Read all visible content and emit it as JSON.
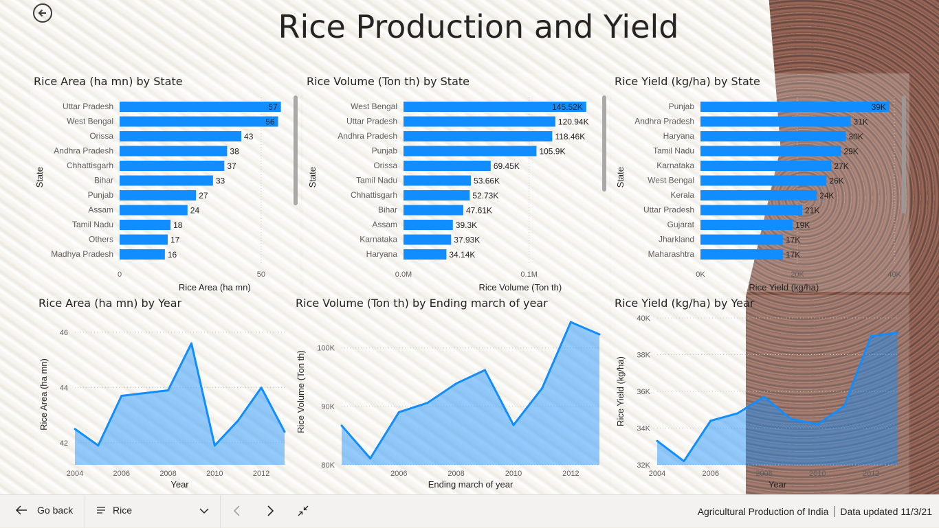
{
  "page": {
    "title": "Rice Production and Yield",
    "icons": {
      "back": "back-arrow-circle-icon"
    }
  },
  "colors": {
    "accent": "#118DFF",
    "area_fill": "rgba(17,141,255,0.45)"
  },
  "footer": {
    "go_back_label": "Go back",
    "page_selector": "Rice",
    "report_name": "Agricultural Production of India",
    "updated": "Data updated 11/3/21"
  },
  "chart_data": [
    {
      "id": "area_state",
      "type": "bar",
      "orientation": "horizontal",
      "title": "Rice Area (ha mn) by State",
      "xlabel": "Rice Area (ha mn)",
      "ylabel": "State",
      "categories": [
        "Uttar Pradesh",
        "West Bengal",
        "Orissa",
        "Andhra Pradesh",
        "Chhattisgarh",
        "Bihar",
        "Punjab",
        "Assam",
        "Tamil Nadu",
        "Others",
        "Madhya Pradesh"
      ],
      "values": [
        57,
        56,
        43,
        38,
        37,
        33,
        27,
        24,
        18,
        17,
        16
      ],
      "data_labels": [
        "57",
        "56",
        "43",
        "38",
        "37",
        "33",
        "27",
        "24",
        "18",
        "17",
        "16"
      ],
      "xlim": [
        0,
        60
      ],
      "xticks": [
        0,
        50
      ],
      "xtick_labels": [
        "0",
        "50"
      ]
    },
    {
      "id": "vol_state",
      "type": "bar",
      "orientation": "horizontal",
      "title": "Rice Volume (Ton th) by State",
      "xlabel": "Rice Volume (Ton th)",
      "ylabel": "State",
      "categories": [
        "West Bengal",
        "Uttar Pradesh",
        "Andhra Pradesh",
        "Punjab",
        "Orissa",
        "Tamil Nadu",
        "Chhattisgarh",
        "Bihar",
        "Assam",
        "Karnataka",
        "Haryana"
      ],
      "values": [
        145520,
        120940,
        118460,
        105900,
        69450,
        53660,
        52730,
        47610,
        39300,
        37930,
        34140
      ],
      "data_labels": [
        "145.52K",
        "120.94K",
        "118.46K",
        "105.9K",
        "69.45K",
        "53.66K",
        "52.73K",
        "47.61K",
        "39.3K",
        "37.93K",
        "34.14K"
      ],
      "xlim": [
        0,
        150000
      ],
      "xticks": [
        0,
        100000
      ],
      "xtick_labels": [
        "0.0M",
        "0.1M"
      ]
    },
    {
      "id": "yield_state",
      "type": "bar",
      "orientation": "horizontal",
      "title": "Rice Yield (kg/ha) by State",
      "xlabel": "Rice Yield (kg/ha)",
      "ylabel": "State",
      "categories": [
        "Punjab",
        "Andhra Pradesh",
        "Haryana",
        "Tamil Nadu",
        "Karnataka",
        "West Bengal",
        "Kerala",
        "Uttar Pradesh",
        "Gujarat",
        "Jharkland",
        "Maharashtra"
      ],
      "values": [
        39000,
        31000,
        30000,
        29000,
        27000,
        26000,
        24000,
        21000,
        19000,
        17000,
        17000
      ],
      "data_labels": [
        "39K",
        "31K",
        "30K",
        "29K",
        "27K",
        "26K",
        "24K",
        "21K",
        "19K",
        "17K",
        "17K"
      ],
      "xlim": [
        0,
        40000
      ],
      "xticks": [
        0,
        20000,
        40000
      ],
      "xtick_labels": [
        "0K",
        "20K",
        "40K"
      ]
    },
    {
      "id": "area_year",
      "type": "area",
      "title": "Rice Area (ha mn) by Year",
      "xlabel": "Year",
      "ylabel": "Rice Area (ha mn)",
      "x": [
        2004,
        2005,
        2006,
        2007,
        2008,
        2009,
        2010,
        2011,
        2012,
        2013
      ],
      "values": [
        42.5,
        41.9,
        43.7,
        43.8,
        43.9,
        45.6,
        41.9,
        42.8,
        44.0,
        42.4
      ],
      "xlim": [
        2004,
        2013
      ],
      "ylim": [
        41.2,
        46.3
      ],
      "xticks": [
        2004,
        2006,
        2008,
        2010,
        2012
      ],
      "xtick_labels": [
        "2004",
        "2006",
        "2008",
        "2010",
        "2012"
      ],
      "yticks": [
        42,
        44,
        46
      ],
      "ytick_labels": [
        "42",
        "44",
        "46"
      ]
    },
    {
      "id": "vol_year",
      "type": "area",
      "title": "Rice Volume (Ton th) by Ending march of year",
      "xlabel": "Ending march of year",
      "ylabel": "Rice Volume (Ton th)",
      "x": [
        2004,
        2005,
        2006,
        2007,
        2008,
        2009,
        2010,
        2011,
        2012,
        2013
      ],
      "values": [
        86700,
        81100,
        89000,
        90600,
        93900,
        96200,
        86800,
        93100,
        104400,
        102300
      ],
      "xlim": [
        2004,
        2013
      ],
      "ylim": [
        80000,
        105000
      ],
      "xticks": [
        2006,
        2008,
        2010,
        2012
      ],
      "xtick_labels": [
        "2006",
        "2008",
        "2010",
        "2012"
      ],
      "yticks": [
        80000,
        90000,
        100000
      ],
      "ytick_labels": [
        "80K",
        "90K",
        "100K"
      ]
    },
    {
      "id": "yield_year",
      "type": "area",
      "title": "Rice Yield (kg/ha) by Year",
      "xlabel": "Year",
      "ylabel": "Rice Yield (kg/ha)",
      "x": [
        2004,
        2005,
        2006,
        2007,
        2008,
        2009,
        2010,
        2011,
        2012,
        2013
      ],
      "values": [
        33300,
        32200,
        34400,
        34800,
        35700,
        34500,
        34200,
        35200,
        39000,
        39200
      ],
      "xlim": [
        2004,
        2013
      ],
      "ylim": [
        32000,
        40000
      ],
      "xticks": [
        2004,
        2006,
        2008,
        2010,
        2012
      ],
      "xtick_labels": [
        "2004",
        "2006",
        "2008",
        "2010",
        "2012"
      ],
      "yticks": [
        32000,
        34000,
        36000,
        38000,
        40000
      ],
      "ytick_labels": [
        "32K",
        "34K",
        "36K",
        "38K",
        "40K"
      ]
    }
  ]
}
